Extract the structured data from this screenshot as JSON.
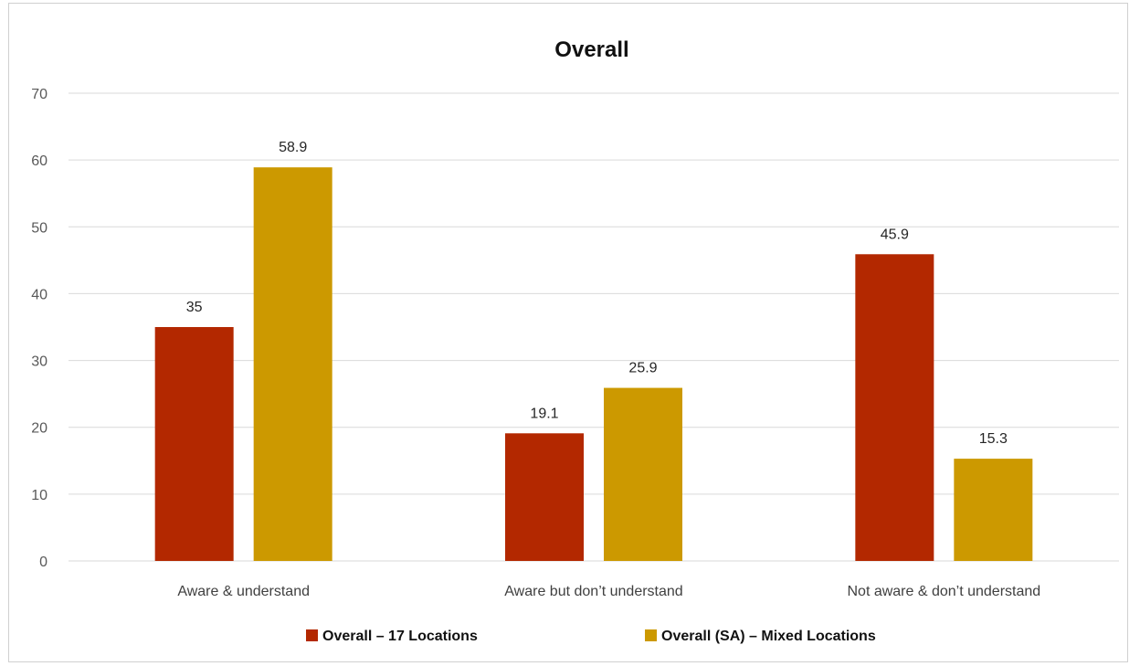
{
  "chart_data": {
    "type": "bar",
    "title": "Overall",
    "xlabel": "",
    "ylabel": "",
    "categories": [
      "Aware & understand",
      "Aware but don’t understand",
      "Not aware & don’t understand"
    ],
    "series": [
      {
        "name": "Overall – 17 Locations",
        "values": [
          35,
          19.1,
          45.9
        ],
        "value_labels": [
          "35",
          "19.1",
          "45.9"
        ],
        "color": "#b32800"
      },
      {
        "name": "Overall (SA) – Mixed Locations",
        "values": [
          58.9,
          25.9,
          15.3
        ],
        "value_labels": [
          "58.9",
          "25.9",
          "15.3"
        ],
        "color": "#cc9900"
      }
    ],
    "ylim": [
      0,
      70
    ],
    "yticks": [
      0,
      10,
      20,
      30,
      40,
      50,
      60,
      70
    ],
    "grid": true,
    "legend_position": "bottom"
  }
}
